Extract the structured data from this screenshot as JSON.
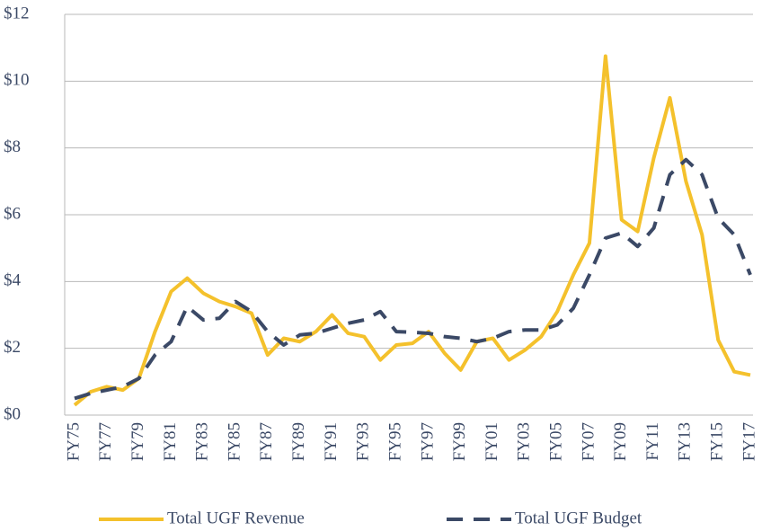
{
  "chart_data": {
    "type": "line",
    "categories": [
      "FY75",
      null,
      "FY77",
      null,
      "FY79",
      null,
      "FY81",
      null,
      "FY83",
      null,
      "FY85",
      null,
      "FY87",
      null,
      "FY89",
      null,
      "FY91",
      null,
      "FY93",
      null,
      "FY95",
      null,
      "FY97",
      null,
      "FY99",
      null,
      "FY01",
      null,
      "FY03",
      null,
      "FY05",
      null,
      "FY07",
      null,
      "FY09",
      null,
      "FY11",
      null,
      "FY13",
      null,
      "FY15",
      null,
      "FY17"
    ],
    "series": [
      {
        "name": "Total UGF Revenue",
        "color": "#f4c12c",
        "dash": "solid",
        "values": [
          0.3,
          0.7,
          0.85,
          0.75,
          1.1,
          2.5,
          3.7,
          4.1,
          3.65,
          3.4,
          3.25,
          3.05,
          1.8,
          2.3,
          2.2,
          2.5,
          3.0,
          2.45,
          2.35,
          1.65,
          2.1,
          2.15,
          2.5,
          1.85,
          1.35,
          2.2,
          2.3,
          1.65,
          1.95,
          2.35,
          3.1,
          4.2,
          5.15,
          10.75,
          5.85,
          5.5,
          7.7,
          9.5,
          7.0,
          5.4,
          2.25,
          1.3,
          1.2
        ]
      },
      {
        "name": "Total UGF Budget",
        "color": "#3b4966",
        "dash": "dashed",
        "values": [
          0.5,
          0.65,
          0.75,
          0.85,
          1.1,
          1.8,
          2.2,
          3.25,
          2.85,
          2.9,
          3.4,
          3.1,
          2.5,
          2.1,
          2.4,
          2.45,
          2.6,
          2.75,
          2.85,
          3.1,
          2.5,
          2.48,
          2.45,
          2.35,
          2.3,
          2.2,
          2.3,
          2.5,
          2.55,
          2.55,
          2.7,
          3.2,
          4.2,
          5.3,
          5.45,
          5.05,
          5.6,
          7.2,
          7.65,
          7.2,
          5.9,
          5.4,
          4.2
        ]
      }
    ],
    "ylim": [
      0,
      12
    ],
    "yticks": [
      {
        "value": 0,
        "label": "$0"
      },
      {
        "value": 2,
        "label": "$2"
      },
      {
        "value": 4,
        "label": "$4"
      },
      {
        "value": 6,
        "label": "$6"
      },
      {
        "value": 8,
        "label": "$8"
      },
      {
        "value": 10,
        "label": "$10"
      },
      {
        "value": 12,
        "label": "$12"
      }
    ],
    "grid": true,
    "legend": "bottom"
  }
}
